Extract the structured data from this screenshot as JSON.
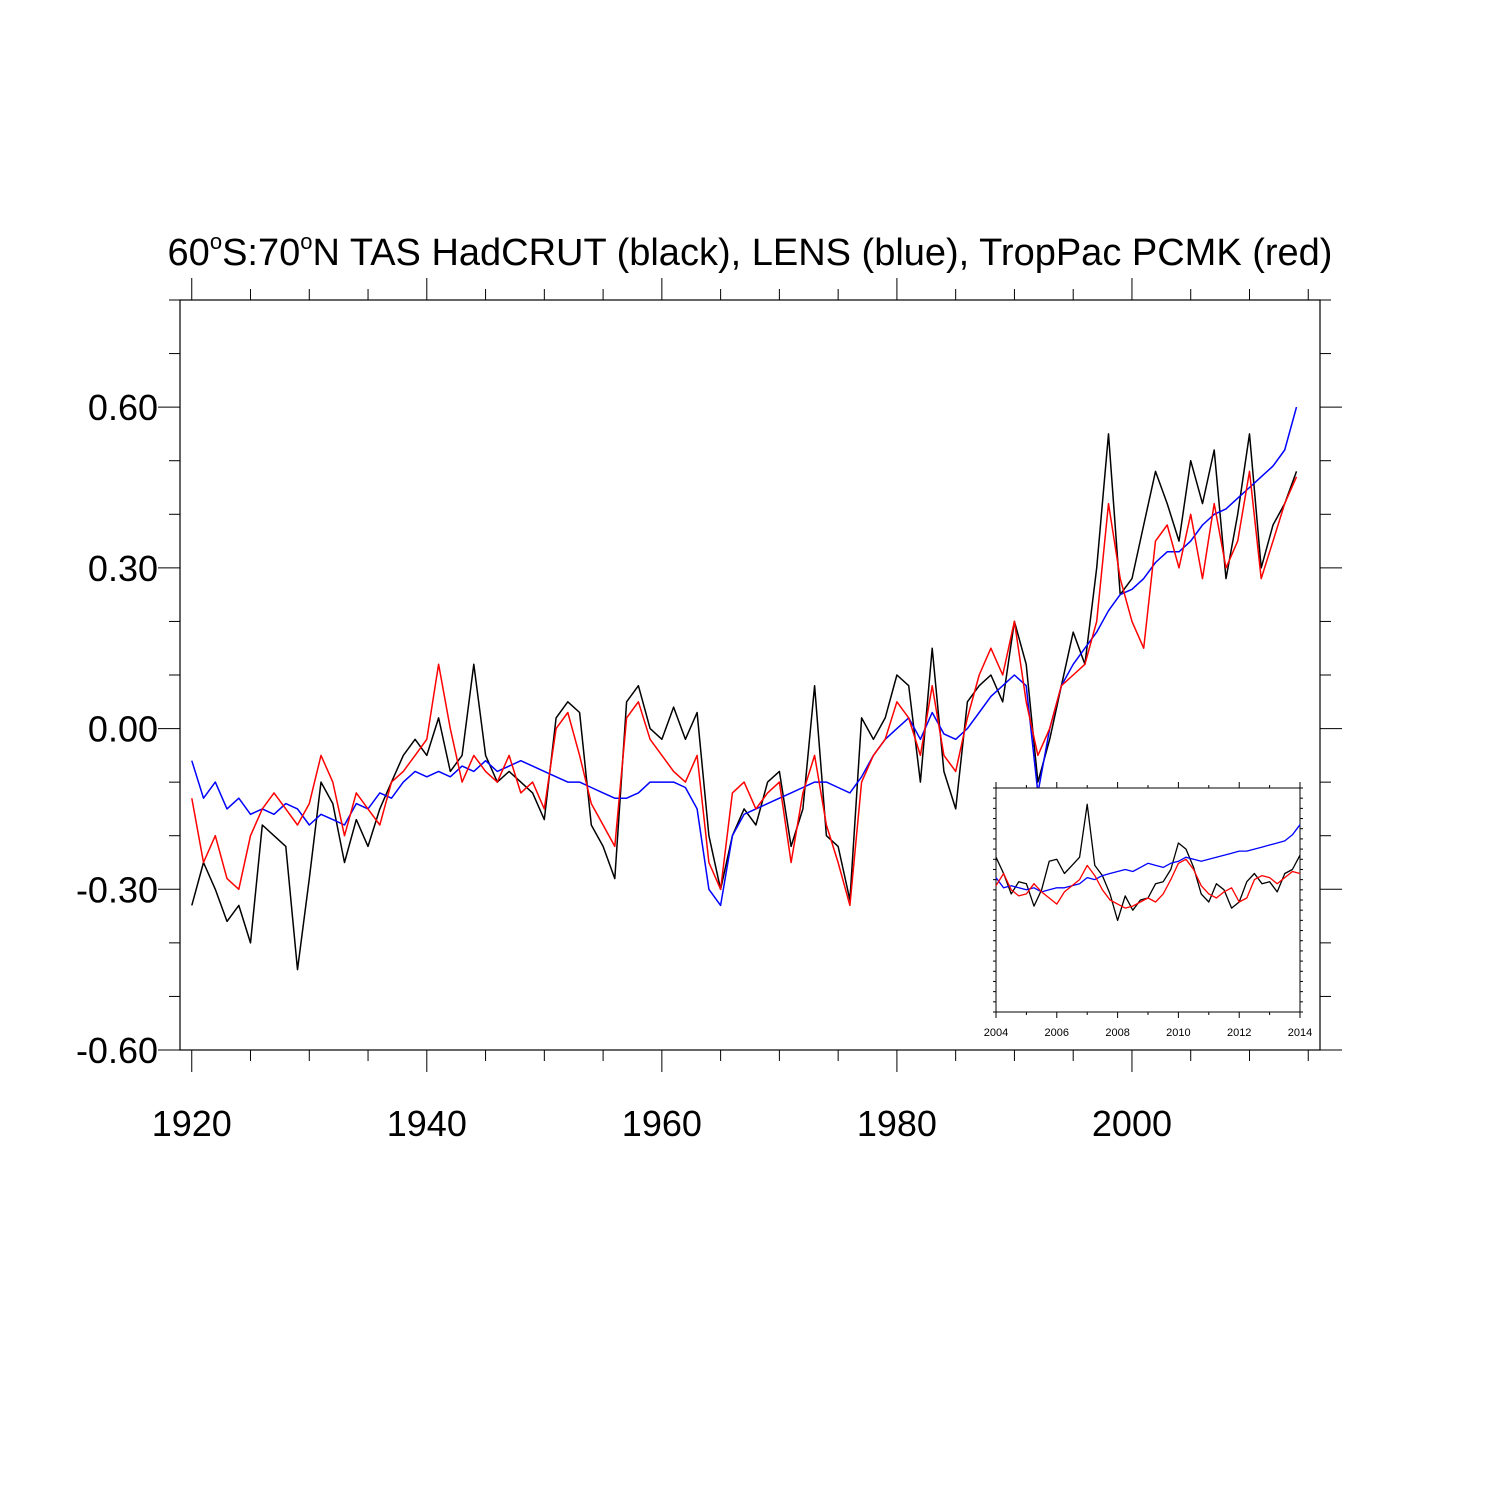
{
  "title": {
    "part1": "60",
    "sup1": "o",
    "part2": "S:70",
    "sup2": "o",
    "part3": "N TAS HadCRUT (black), LENS (blue), TropPac PCMK (red)"
  },
  "chart_data": [
    {
      "type": "line",
      "role": "main",
      "title": "60°S:70°N TAS HadCRUT (black), LENS (blue), TropPac PCMK (red)",
      "xlabel": "",
      "ylabel": "",
      "xlim": [
        1919,
        2016
      ],
      "ylim": [
        -0.6,
        0.8
      ],
      "x_ticks": [
        1920,
        1940,
        1960,
        1980,
        2000
      ],
      "y_ticks": [
        0.6,
        0.3,
        0.0,
        -0.3,
        -0.6
      ],
      "y_tick_labels": [
        "0.60",
        "0.30",
        "0.00",
        "-0.30",
        "-0.60"
      ],
      "x_tick_labels": [
        "1920",
        "1940",
        "1960",
        "1980",
        "2000"
      ],
      "series": [
        {
          "description": "HadCRUT",
          "color": "#000000",
          "x": [
            1920,
            1921,
            1922,
            1923,
            1924,
            1925,
            1926,
            1927,
            1928,
            1929,
            1930,
            1931,
            1932,
            1933,
            1934,
            1935,
            1936,
            1937,
            1938,
            1939,
            1940,
            1941,
            1942,
            1943,
            1944,
            1945,
            1946,
            1947,
            1948,
            1949,
            1950,
            1951,
            1952,
            1953,
            1954,
            1955,
            1956,
            1957,
            1958,
            1959,
            1960,
            1961,
            1962,
            1963,
            1964,
            1965,
            1966,
            1967,
            1968,
            1969,
            1970,
            1971,
            1972,
            1973,
            1974,
            1975,
            1976,
            1977,
            1978,
            1979,
            1980,
            1981,
            1982,
            1983,
            1984,
            1985,
            1986,
            1987,
            1988,
            1989,
            1990,
            1991,
            1992,
            1993,
            1994,
            1995,
            1996,
            1997,
            1998,
            1999,
            2000,
            2001,
            2002,
            2003,
            2004,
            2005,
            2006,
            2007,
            2008,
            2009,
            2010,
            2011,
            2012,
            2013,
            2014
          ],
          "y": [
            -0.33,
            -0.25,
            -0.3,
            -0.36,
            -0.33,
            -0.4,
            -0.18,
            -0.2,
            -0.22,
            -0.45,
            -0.28,
            -0.1,
            -0.14,
            -0.25,
            -0.17,
            -0.22,
            -0.15,
            -0.1,
            -0.05,
            -0.02,
            -0.05,
            0.02,
            -0.08,
            -0.05,
            0.12,
            -0.05,
            -0.1,
            -0.08,
            -0.1,
            -0.12,
            -0.17,
            0.02,
            0.05,
            0.03,
            -0.18,
            -0.22,
            -0.28,
            0.05,
            0.08,
            0.0,
            -0.02,
            0.04,
            -0.02,
            0.03,
            -0.2,
            -0.3,
            -0.2,
            -0.15,
            -0.18,
            -0.1,
            -0.08,
            -0.22,
            -0.15,
            0.08,
            -0.2,
            -0.22,
            -0.32,
            0.02,
            -0.02,
            0.02,
            0.1,
            0.08,
            -0.1,
            0.15,
            -0.08,
            -0.15,
            0.05,
            0.08,
            0.1,
            0.05,
            0.2,
            0.12,
            -0.1,
            -0.02,
            0.08,
            0.18,
            0.12,
            0.3,
            0.55,
            0.25,
            0.28,
            0.38,
            0.48,
            0.42,
            0.35,
            0.5,
            0.42,
            0.52,
            0.28,
            0.4,
            0.55,
            0.3,
            0.38,
            0.42,
            0.48
          ]
        },
        {
          "description": "LENS",
          "color": "#0000ff",
          "x": [
            1920,
            1921,
            1922,
            1923,
            1924,
            1925,
            1926,
            1927,
            1928,
            1929,
            1930,
            1931,
            1932,
            1933,
            1934,
            1935,
            1936,
            1937,
            1938,
            1939,
            1940,
            1941,
            1942,
            1943,
            1944,
            1945,
            1946,
            1947,
            1948,
            1949,
            1950,
            1951,
            1952,
            1953,
            1954,
            1955,
            1956,
            1957,
            1958,
            1959,
            1960,
            1961,
            1962,
            1963,
            1964,
            1965,
            1966,
            1967,
            1968,
            1969,
            1970,
            1971,
            1972,
            1973,
            1974,
            1975,
            1976,
            1977,
            1978,
            1979,
            1980,
            1981,
            1982,
            1983,
            1984,
            1985,
            1986,
            1987,
            1988,
            1989,
            1990,
            1991,
            1992,
            1993,
            1994,
            1995,
            1996,
            1997,
            1998,
            1999,
            2000,
            2001,
            2002,
            2003,
            2004,
            2005,
            2006,
            2007,
            2008,
            2009,
            2010,
            2011,
            2012,
            2013,
            2014
          ],
          "y": [
            -0.06,
            -0.13,
            -0.1,
            -0.15,
            -0.13,
            -0.16,
            -0.15,
            -0.16,
            -0.14,
            -0.15,
            -0.18,
            -0.16,
            -0.17,
            -0.18,
            -0.14,
            -0.15,
            -0.12,
            -0.13,
            -0.1,
            -0.08,
            -0.09,
            -0.08,
            -0.09,
            -0.07,
            -0.08,
            -0.06,
            -0.08,
            -0.07,
            -0.06,
            -0.07,
            -0.08,
            -0.09,
            -0.1,
            -0.1,
            -0.11,
            -0.12,
            -0.13,
            -0.13,
            -0.12,
            -0.1,
            -0.1,
            -0.1,
            -0.11,
            -0.15,
            -0.3,
            -0.33,
            -0.2,
            -0.16,
            -0.15,
            -0.14,
            -0.13,
            -0.12,
            -0.11,
            -0.1,
            -0.1,
            -0.11,
            -0.12,
            -0.09,
            -0.05,
            -0.02,
            0.0,
            0.02,
            -0.02,
            0.03,
            -0.01,
            -0.02,
            0.0,
            0.03,
            0.06,
            0.08,
            0.1,
            0.08,
            -0.12,
            0.0,
            0.08,
            0.12,
            0.15,
            0.18,
            0.22,
            0.25,
            0.26,
            0.28,
            0.31,
            0.33,
            0.33,
            0.35,
            0.38,
            0.4,
            0.41,
            0.43,
            0.45,
            0.47,
            0.49,
            0.52,
            0.6
          ]
        },
        {
          "description": "TropPac PCMK",
          "color": "#ff0000",
          "x": [
            1920,
            1921,
            1922,
            1923,
            1924,
            1925,
            1926,
            1927,
            1928,
            1929,
            1930,
            1931,
            1932,
            1933,
            1934,
            1935,
            1936,
            1937,
            1938,
            1939,
            1940,
            1941,
            1942,
            1943,
            1944,
            1945,
            1946,
            1947,
            1948,
            1949,
            1950,
            1951,
            1952,
            1953,
            1954,
            1955,
            1956,
            1957,
            1958,
            1959,
            1960,
            1961,
            1962,
            1963,
            1964,
            1965,
            1966,
            1967,
            1968,
            1969,
            1970,
            1971,
            1972,
            1973,
            1974,
            1975,
            1976,
            1977,
            1978,
            1979,
            1980,
            1981,
            1982,
            1983,
            1984,
            1985,
            1986,
            1987,
            1988,
            1989,
            1990,
            1991,
            1992,
            1993,
            1994,
            1995,
            1996,
            1997,
            1998,
            1999,
            2000,
            2001,
            2002,
            2003,
            2004,
            2005,
            2006,
            2007,
            2008,
            2009,
            2010,
            2011,
            2012,
            2013,
            2014
          ],
          "y": [
            -0.13,
            -0.25,
            -0.2,
            -0.28,
            -0.3,
            -0.2,
            -0.15,
            -0.12,
            -0.15,
            -0.18,
            -0.14,
            -0.05,
            -0.1,
            -0.2,
            -0.12,
            -0.15,
            -0.18,
            -0.1,
            -0.08,
            -0.05,
            -0.02,
            0.12,
            0.0,
            -0.1,
            -0.05,
            -0.08,
            -0.1,
            -0.05,
            -0.12,
            -0.1,
            -0.15,
            0.0,
            0.03,
            -0.05,
            -0.14,
            -0.18,
            -0.22,
            0.02,
            0.05,
            -0.02,
            -0.05,
            -0.08,
            -0.1,
            -0.05,
            -0.25,
            -0.3,
            -0.12,
            -0.1,
            -0.15,
            -0.12,
            -0.1,
            -0.25,
            -0.12,
            -0.05,
            -0.18,
            -0.25,
            -0.33,
            -0.1,
            -0.05,
            -0.02,
            0.05,
            0.02,
            -0.05,
            0.08,
            -0.05,
            -0.08,
            0.02,
            0.1,
            0.15,
            0.1,
            0.2,
            0.05,
            -0.05,
            0.0,
            0.08,
            0.1,
            0.12,
            0.2,
            0.42,
            0.28,
            0.2,
            0.15,
            0.35,
            0.38,
            0.3,
            0.4,
            0.28,
            0.42,
            0.3,
            0.35,
            0.48,
            0.28,
            0.35,
            0.42,
            0.47
          ]
        }
      ]
    },
    {
      "type": "line",
      "role": "inset",
      "xlim": [
        2004,
        2014
      ],
      "ylim": [
        -0.3,
        0.8
      ],
      "x_ticks": [
        2004,
        2006,
        2008,
        2010,
        2012,
        2014
      ],
      "x_tick_labels": [
        "2004",
        "2006",
        "2008",
        "2010",
        "2012",
        "2014"
      ],
      "series": [
        {
          "description": "HadCRUT",
          "color": "#000000",
          "x": [
            2004.0,
            2004.25,
            2004.5,
            2004.75,
            2005.0,
            2005.25,
            2005.5,
            2005.75,
            2006.0,
            2006.25,
            2006.5,
            2006.75,
            2007.0,
            2007.25,
            2007.5,
            2007.75,
            2008.0,
            2008.25,
            2008.5,
            2008.75,
            2009.0,
            2009.25,
            2009.5,
            2009.75,
            2010.0,
            2010.25,
            2010.5,
            2010.75,
            2011.0,
            2011.25,
            2011.5,
            2011.75,
            2012.0,
            2012.25,
            2012.5,
            2012.75,
            2013.0,
            2013.25,
            2013.5,
            2013.75,
            2014.0
          ],
          "y": [
            0.46,
            0.38,
            0.28,
            0.34,
            0.33,
            0.22,
            0.3,
            0.44,
            0.45,
            0.38,
            0.42,
            0.46,
            0.72,
            0.42,
            0.37,
            0.28,
            0.15,
            0.27,
            0.2,
            0.25,
            0.26,
            0.33,
            0.34,
            0.4,
            0.53,
            0.5,
            0.41,
            0.28,
            0.24,
            0.33,
            0.3,
            0.21,
            0.24,
            0.34,
            0.38,
            0.33,
            0.34,
            0.29,
            0.38,
            0.4,
            0.47
          ]
        },
        {
          "description": "LENS",
          "color": "#0000ff",
          "x": [
            2004.0,
            2004.25,
            2004.5,
            2004.75,
            2005.0,
            2005.25,
            2005.5,
            2005.75,
            2006.0,
            2006.25,
            2006.5,
            2006.75,
            2007.0,
            2007.25,
            2007.5,
            2007.75,
            2008.0,
            2008.25,
            2008.5,
            2008.75,
            2009.0,
            2009.25,
            2009.5,
            2009.75,
            2010.0,
            2010.25,
            2010.5,
            2010.75,
            2011.0,
            2011.25,
            2011.5,
            2011.75,
            2012.0,
            2012.25,
            2012.5,
            2012.75,
            2013.0,
            2013.25,
            2013.5,
            2013.75,
            2014.0
          ],
          "y": [
            0.36,
            0.31,
            0.32,
            0.31,
            0.3,
            0.31,
            0.29,
            0.3,
            0.31,
            0.31,
            0.32,
            0.33,
            0.36,
            0.35,
            0.37,
            0.38,
            0.39,
            0.4,
            0.39,
            0.41,
            0.43,
            0.42,
            0.41,
            0.43,
            0.44,
            0.46,
            0.45,
            0.44,
            0.45,
            0.46,
            0.47,
            0.48,
            0.49,
            0.49,
            0.5,
            0.51,
            0.52,
            0.53,
            0.54,
            0.57,
            0.62
          ]
        },
        {
          "description": "TropPac PCMK",
          "color": "#ff0000",
          "x": [
            2004.0,
            2004.25,
            2004.5,
            2004.75,
            2005.0,
            2005.25,
            2005.5,
            2005.75,
            2006.0,
            2006.25,
            2006.5,
            2006.75,
            2007.0,
            2007.25,
            2007.5,
            2007.75,
            2008.0,
            2008.25,
            2008.5,
            2008.75,
            2009.0,
            2009.25,
            2009.5,
            2009.75,
            2010.0,
            2010.25,
            2010.5,
            2010.75,
            2011.0,
            2011.25,
            2011.5,
            2011.75,
            2012.0,
            2012.25,
            2012.5,
            2012.75,
            2013.0,
            2013.25,
            2013.5,
            2013.75,
            2014.0
          ],
          "y": [
            0.32,
            0.38,
            0.3,
            0.27,
            0.28,
            0.33,
            0.29,
            0.26,
            0.23,
            0.29,
            0.32,
            0.35,
            0.42,
            0.37,
            0.3,
            0.25,
            0.23,
            0.21,
            0.22,
            0.24,
            0.26,
            0.24,
            0.28,
            0.35,
            0.43,
            0.45,
            0.4,
            0.32,
            0.28,
            0.26,
            0.29,
            0.31,
            0.24,
            0.26,
            0.35,
            0.37,
            0.36,
            0.33,
            0.36,
            0.39,
            0.38
          ]
        }
      ]
    }
  ]
}
